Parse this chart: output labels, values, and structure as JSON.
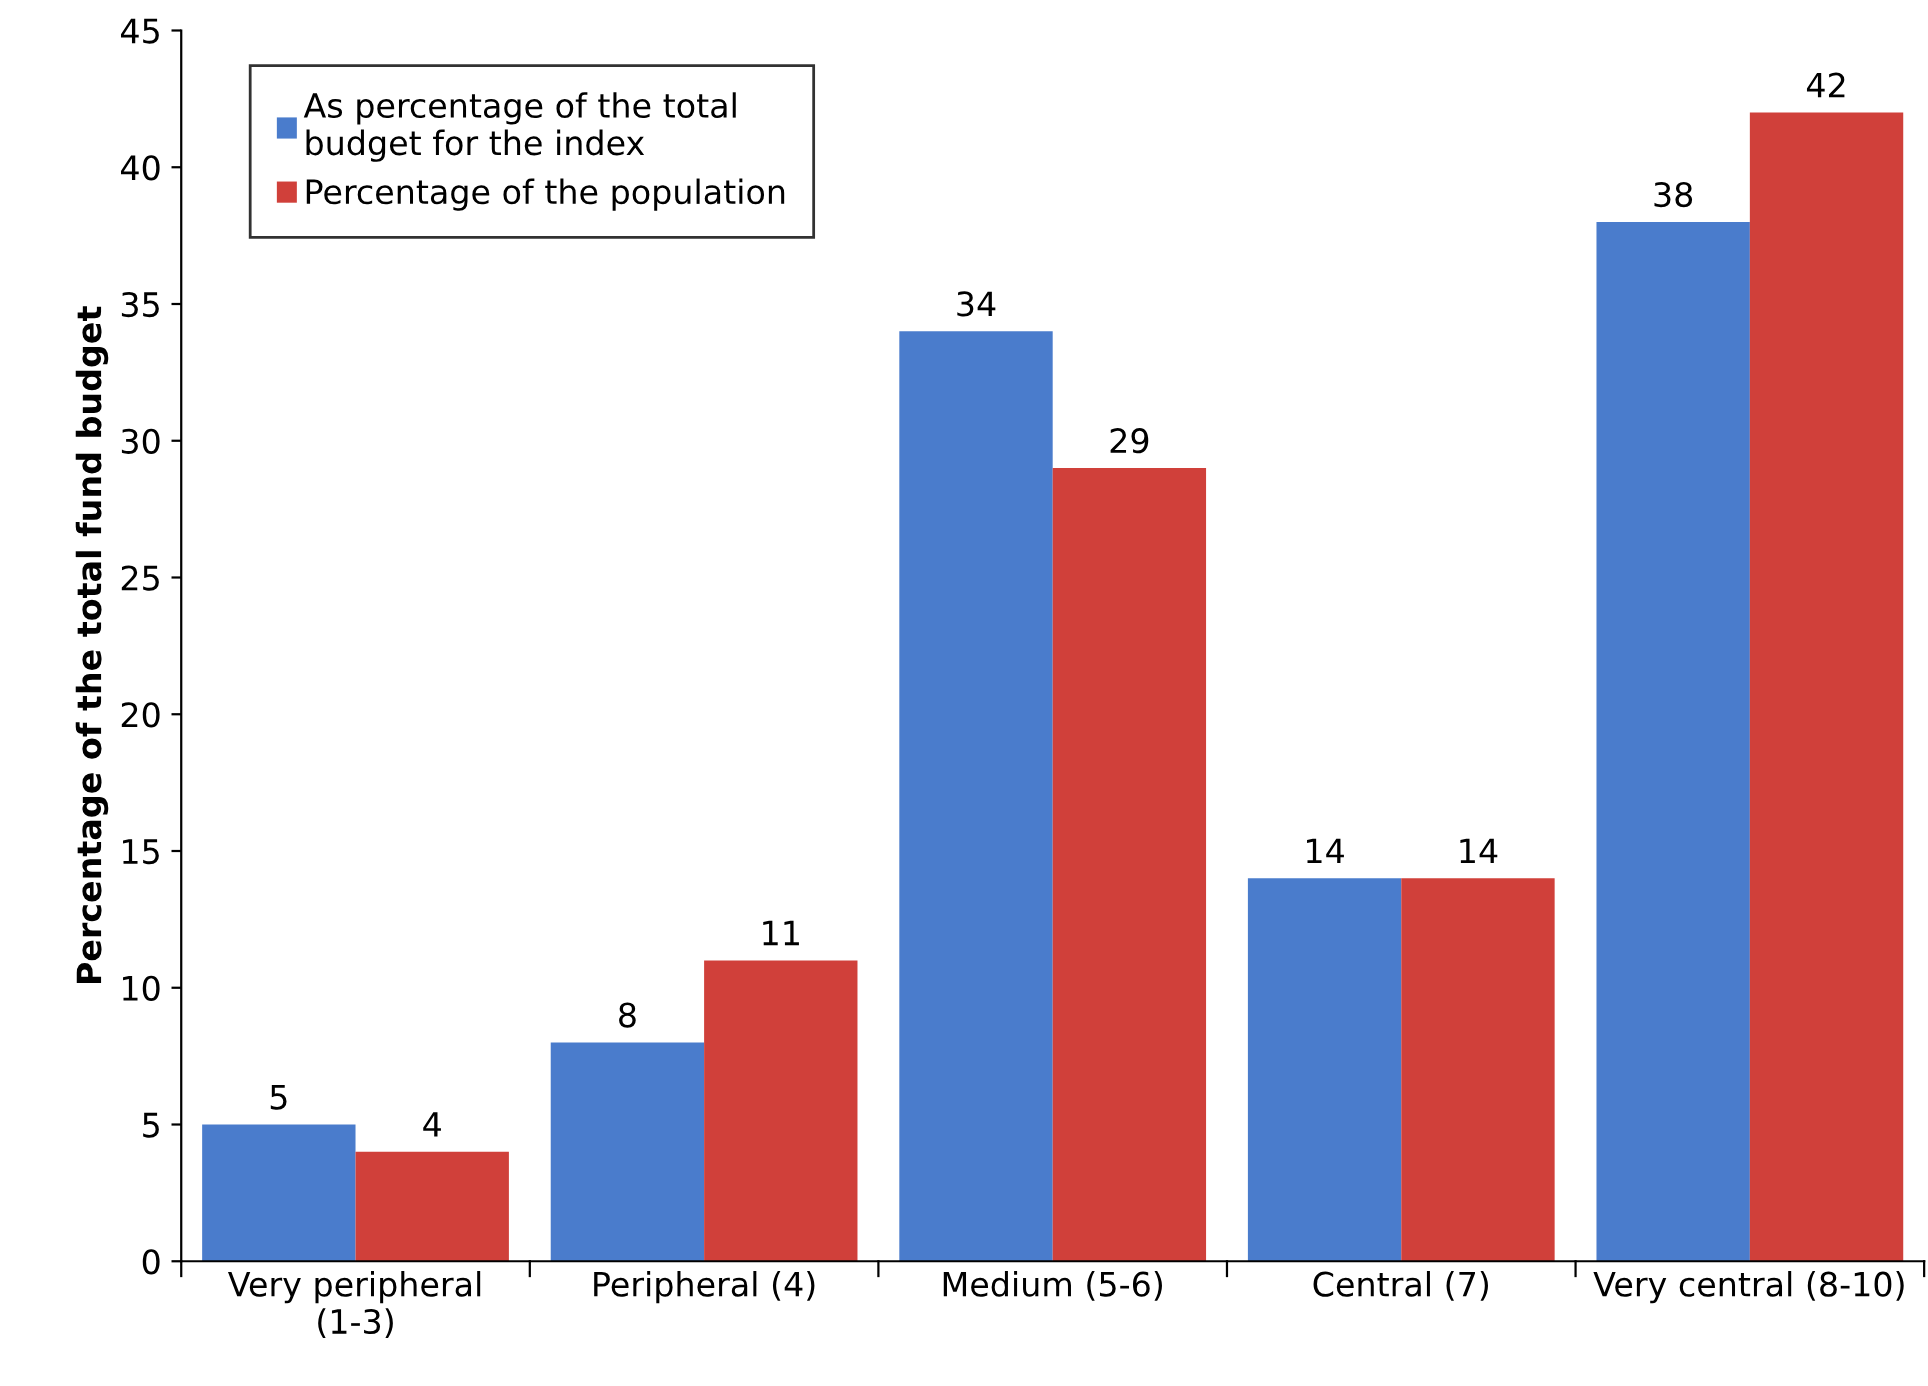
{
  "chart_data": {
    "type": "bar",
    "ylabel": "Percentage of the total fund budget",
    "categories": [
      "Very peripheral\n(1-3)",
      "Peripheral (4)",
      "Medium (5-6)",
      "Central (7)",
      "Very central (8-10)"
    ],
    "series": [
      {
        "name": "As percentage of the total\nbudget for the index",
        "color": "#4a7ccc",
        "values": [
          5,
          8,
          34,
          14,
          38
        ]
      },
      {
        "name": "Percentage of the population",
        "color": "#d0403a",
        "values": [
          4,
          11,
          29,
          14,
          42
        ]
      }
    ],
    "ylim": [
      0,
      45
    ],
    "yticks": [
      0,
      5,
      10,
      15,
      20,
      25,
      30,
      35,
      40,
      45
    ],
    "grid": false,
    "legend": "top left",
    "data_labels": true
  }
}
